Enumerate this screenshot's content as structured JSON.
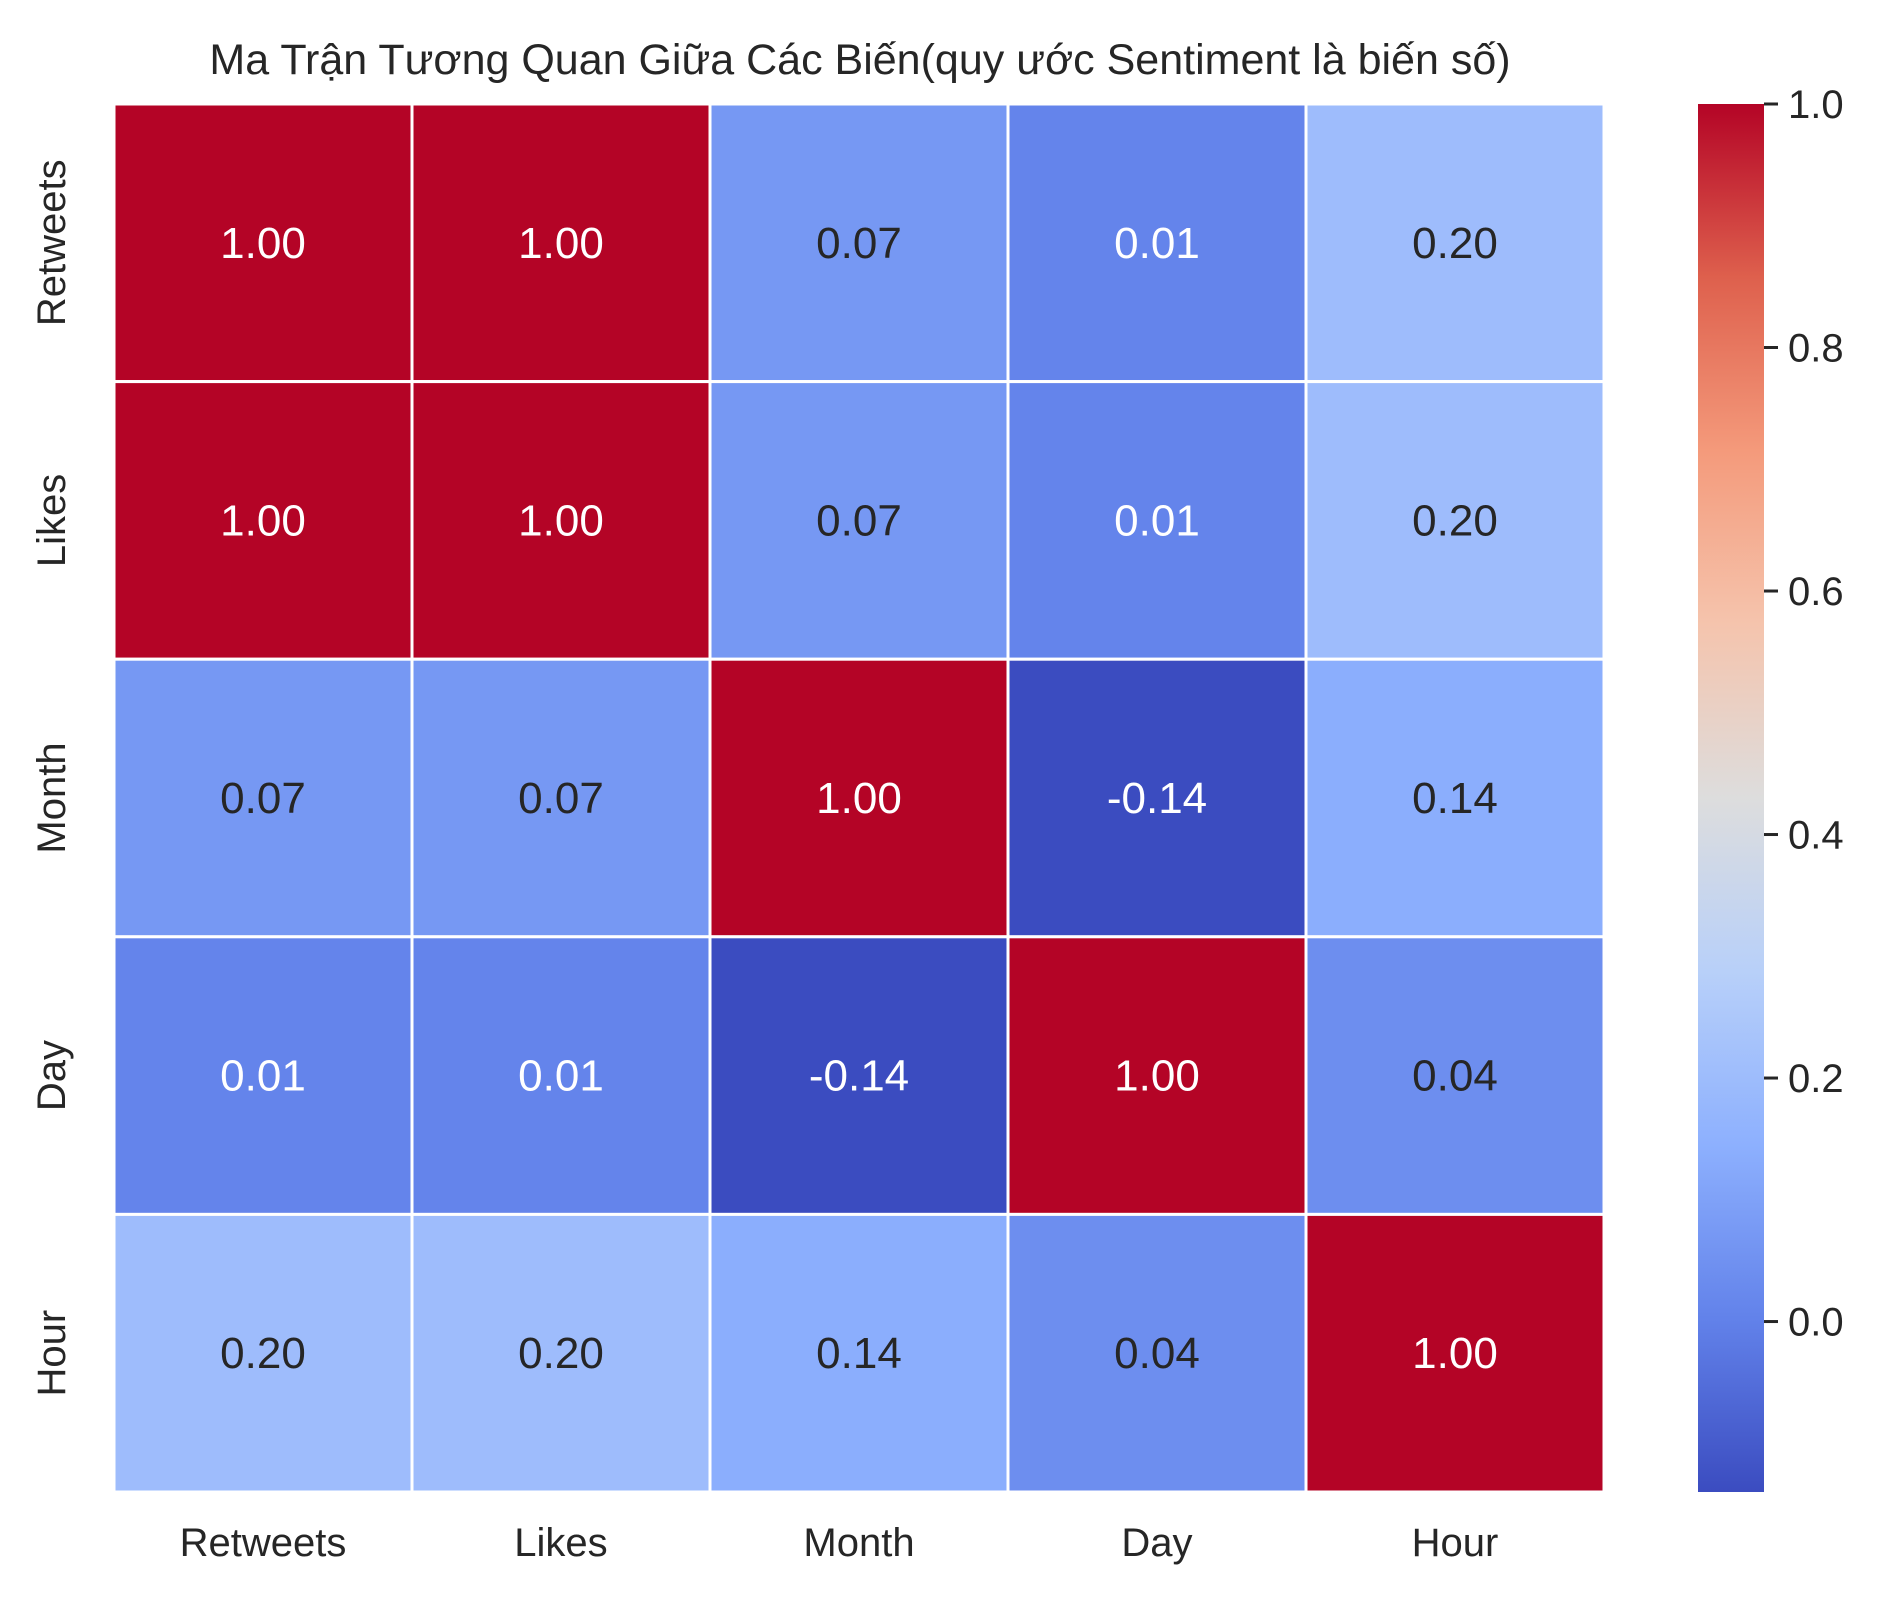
{
  "chart_data": {
    "type": "heatmap",
    "title": "Ma Trận Tương Quan Giữa Các Biến(quy ước Sentiment là biến số)",
    "x_categories": [
      "Retweets",
      "Likes",
      "Month",
      "Day",
      "Hour"
    ],
    "y_categories": [
      "Retweets",
      "Likes",
      "Month",
      "Day",
      "Hour"
    ],
    "values": [
      [
        1.0,
        1.0,
        0.07,
        0.01,
        0.2
      ],
      [
        1.0,
        1.0,
        0.07,
        0.01,
        0.2
      ],
      [
        0.07,
        0.07,
        1.0,
        -0.14,
        0.14
      ],
      [
        0.01,
        0.01,
        -0.14,
        1.0,
        0.04
      ],
      [
        0.2,
        0.2,
        0.14,
        0.04,
        1.0
      ]
    ],
    "value_format": "0.00",
    "colormap": "coolwarm",
    "vmin": -0.14,
    "vmax": 1.0,
    "colorbar": {
      "ticks": [
        0.0,
        0.2,
        0.4,
        0.6,
        0.8,
        1.0
      ],
      "tick_labels": [
        "0.0",
        "0.2",
        "0.4",
        "0.6",
        "0.8",
        "1.0"
      ],
      "placement": "right"
    },
    "cell_border_color": "#ffffff",
    "dark_text_color": "#262626",
    "light_text_color": "#ffffff"
  }
}
